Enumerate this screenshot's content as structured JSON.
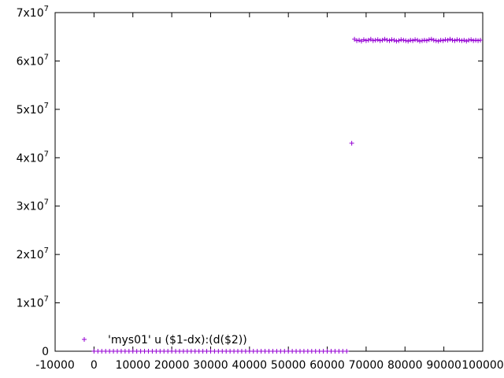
{
  "chart_data": {
    "type": "scatter",
    "title": "",
    "xlabel": "",
    "ylabel": "",
    "xlim": [
      -10000,
      100000
    ],
    "ylim": [
      0,
      70000000
    ],
    "grid": false,
    "legend_position": "bottom-left",
    "x_ticks": [
      {
        "value": -10000,
        "label": "-10000"
      },
      {
        "value": 0,
        "label": "0"
      },
      {
        "value": 10000,
        "label": "10000"
      },
      {
        "value": 20000,
        "label": "20000"
      },
      {
        "value": 30000,
        "label": "30000"
      },
      {
        "value": 40000,
        "label": "40000"
      },
      {
        "value": 50000,
        "label": "50000"
      },
      {
        "value": 60000,
        "label": "60000"
      },
      {
        "value": 70000,
        "label": "70000"
      },
      {
        "value": 80000,
        "label": "80000"
      },
      {
        "value": 90000,
        "label": "90000"
      },
      {
        "value": 100000,
        "label": "100000"
      }
    ],
    "y_ticks": [
      {
        "value": 0,
        "label": "0",
        "mantissa": "",
        "exponent": ""
      },
      {
        "value": 10000000,
        "label": "1x10^7",
        "mantissa": "1x10",
        "exponent": "7"
      },
      {
        "value": 20000000,
        "label": "2x10^7",
        "mantissa": "2x10",
        "exponent": "7"
      },
      {
        "value": 30000000,
        "label": "3x10^7",
        "mantissa": "3x10",
        "exponent": "7"
      },
      {
        "value": 40000000,
        "label": "4x10^7",
        "mantissa": "4x10",
        "exponent": "7"
      },
      {
        "value": 50000000,
        "label": "5x10^7",
        "mantissa": "5x10",
        "exponent": "7"
      },
      {
        "value": 60000000,
        "label": "6x10^7",
        "mantissa": "6x10",
        "exponent": "7"
      },
      {
        "value": 70000000,
        "label": "7x10^7",
        "mantissa": "7x10",
        "exponent": "7"
      }
    ],
    "series": [
      {
        "name": "'mys01' u ($1-dx):(d($2))",
        "color": "#9400d3",
        "marker": "plus",
        "points": [
          [
            0,
            0
          ],
          [
            1000,
            0
          ],
          [
            2000,
            0
          ],
          [
            3000,
            0
          ],
          [
            4000,
            0
          ],
          [
            5000,
            0
          ],
          [
            6000,
            0
          ],
          [
            7000,
            0
          ],
          [
            8000,
            0
          ],
          [
            9000,
            0
          ],
          [
            10000,
            0
          ],
          [
            11000,
            0
          ],
          [
            12000,
            0
          ],
          [
            13000,
            0
          ],
          [
            14000,
            0
          ],
          [
            15000,
            0
          ],
          [
            16000,
            0
          ],
          [
            17000,
            0
          ],
          [
            18000,
            0
          ],
          [
            19000,
            0
          ],
          [
            20000,
            0
          ],
          [
            21000,
            0
          ],
          [
            22000,
            0
          ],
          [
            23000,
            0
          ],
          [
            24000,
            0
          ],
          [
            25000,
            0
          ],
          [
            26000,
            0
          ],
          [
            27000,
            0
          ],
          [
            28000,
            0
          ],
          [
            29000,
            0
          ],
          [
            30000,
            0
          ],
          [
            31000,
            0
          ],
          [
            32000,
            0
          ],
          [
            33000,
            0
          ],
          [
            34000,
            0
          ],
          [
            35000,
            0
          ],
          [
            36000,
            0
          ],
          [
            37000,
            0
          ],
          [
            38000,
            0
          ],
          [
            39000,
            0
          ],
          [
            40000,
            0
          ],
          [
            41000,
            0
          ],
          [
            42000,
            0
          ],
          [
            43000,
            0
          ],
          [
            44000,
            0
          ],
          [
            45000,
            0
          ],
          [
            46000,
            0
          ],
          [
            47000,
            0
          ],
          [
            48000,
            0
          ],
          [
            49000,
            0
          ],
          [
            50000,
            0
          ],
          [
            51000,
            0
          ],
          [
            52000,
            0
          ],
          [
            53000,
            0
          ],
          [
            54000,
            0
          ],
          [
            55000,
            0
          ],
          [
            56000,
            0
          ],
          [
            57000,
            0
          ],
          [
            58000,
            0
          ],
          [
            59000,
            0
          ],
          [
            60000,
            0
          ],
          [
            61000,
            0
          ],
          [
            62000,
            0
          ],
          [
            63000,
            0
          ],
          [
            64000,
            0
          ],
          [
            65000,
            0
          ],
          [
            66300,
            43000000
          ],
          [
            67000,
            64500000
          ],
          [
            67600,
            64200000
          ],
          [
            68200,
            64300000
          ],
          [
            68800,
            64100000
          ],
          [
            69400,
            64400000
          ],
          [
            70000,
            64200000
          ],
          [
            70600,
            64300000
          ],
          [
            71200,
            64500000
          ],
          [
            71800,
            64200000
          ],
          [
            72400,
            64300000
          ],
          [
            73000,
            64400000
          ],
          [
            73600,
            64200000
          ],
          [
            74200,
            64300000
          ],
          [
            74800,
            64500000
          ],
          [
            75400,
            64300000
          ],
          [
            76000,
            64200000
          ],
          [
            76600,
            64400000
          ],
          [
            77200,
            64300000
          ],
          [
            77800,
            64100000
          ],
          [
            78400,
            64200000
          ],
          [
            79000,
            64400000
          ],
          [
            79600,
            64300000
          ],
          [
            80200,
            64200000
          ],
          [
            80800,
            64100000
          ],
          [
            81400,
            64300000
          ],
          [
            82000,
            64200000
          ],
          [
            82600,
            64400000
          ],
          [
            83200,
            64300000
          ],
          [
            83800,
            64100000
          ],
          [
            84400,
            64200000
          ],
          [
            85000,
            64300000
          ],
          [
            85600,
            64200000
          ],
          [
            86200,
            64400000
          ],
          [
            86800,
            64500000
          ],
          [
            87400,
            64300000
          ],
          [
            88000,
            64200000
          ],
          [
            88600,
            64100000
          ],
          [
            89200,
            64300000
          ],
          [
            89800,
            64200000
          ],
          [
            90400,
            64400000
          ],
          [
            91000,
            64300000
          ],
          [
            91600,
            64500000
          ],
          [
            92200,
            64300000
          ],
          [
            92800,
            64200000
          ],
          [
            93400,
            64400000
          ],
          [
            94000,
            64300000
          ],
          [
            94600,
            64200000
          ],
          [
            95200,
            64300000
          ],
          [
            95800,
            64100000
          ],
          [
            96400,
            64300000
          ],
          [
            97000,
            64400000
          ],
          [
            97600,
            64200000
          ],
          [
            98200,
            64300000
          ],
          [
            98800,
            64200000
          ],
          [
            99400,
            64300000
          ]
        ]
      }
    ]
  }
}
